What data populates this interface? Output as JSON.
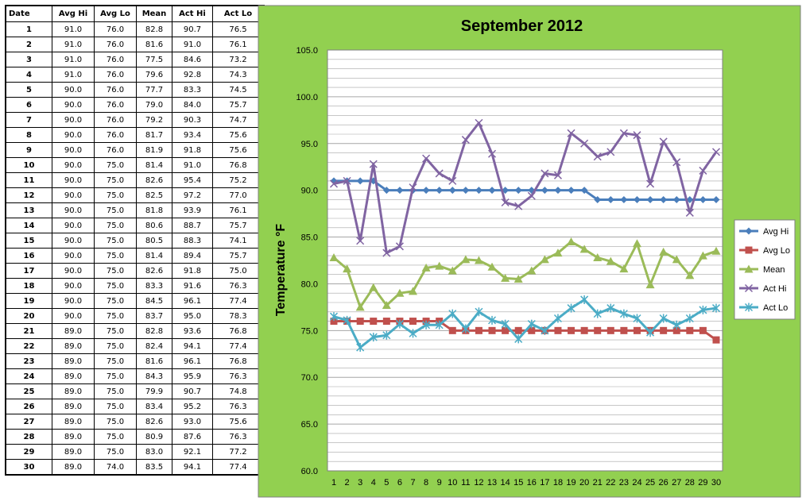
{
  "table": {
    "headers": [
      "Date",
      "Avg Hi",
      "Avg Lo",
      "Mean",
      "Act Hi",
      "Act Lo"
    ],
    "rows": [
      [
        "1",
        "91.0",
        "76.0",
        "82.8",
        "90.7",
        "76.5"
      ],
      [
        "2",
        "91.0",
        "76.0",
        "81.6",
        "91.0",
        "76.1"
      ],
      [
        "3",
        "91.0",
        "76.0",
        "77.5",
        "84.6",
        "73.2"
      ],
      [
        "4",
        "91.0",
        "76.0",
        "79.6",
        "92.8",
        "74.3"
      ],
      [
        "5",
        "90.0",
        "76.0",
        "77.7",
        "83.3",
        "74.5"
      ],
      [
        "6",
        "90.0",
        "76.0",
        "79.0",
        "84.0",
        "75.7"
      ],
      [
        "7",
        "90.0",
        "76.0",
        "79.2",
        "90.3",
        "74.7"
      ],
      [
        "8",
        "90.0",
        "76.0",
        "81.7",
        "93.4",
        "75.6"
      ],
      [
        "9",
        "90.0",
        "76.0",
        "81.9",
        "91.8",
        "75.6"
      ],
      [
        "10",
        "90.0",
        "75.0",
        "81.4",
        "91.0",
        "76.8"
      ],
      [
        "11",
        "90.0",
        "75.0",
        "82.6",
        "95.4",
        "75.2"
      ],
      [
        "12",
        "90.0",
        "75.0",
        "82.5",
        "97.2",
        "77.0"
      ],
      [
        "13",
        "90.0",
        "75.0",
        "81.8",
        "93.9",
        "76.1"
      ],
      [
        "14",
        "90.0",
        "75.0",
        "80.6",
        "88.7",
        "75.7"
      ],
      [
        "15",
        "90.0",
        "75.0",
        "80.5",
        "88.3",
        "74.1"
      ],
      [
        "16",
        "90.0",
        "75.0",
        "81.4",
        "89.4",
        "75.7"
      ],
      [
        "17",
        "90.0",
        "75.0",
        "82.6",
        "91.8",
        "75.0"
      ],
      [
        "18",
        "90.0",
        "75.0",
        "83.3",
        "91.6",
        "76.3"
      ],
      [
        "19",
        "90.0",
        "75.0",
        "84.5",
        "96.1",
        "77.4"
      ],
      [
        "20",
        "90.0",
        "75.0",
        "83.7",
        "95.0",
        "78.3"
      ],
      [
        "21",
        "89.0",
        "75.0",
        "82.8",
        "93.6",
        "76.8"
      ],
      [
        "22",
        "89.0",
        "75.0",
        "82.4",
        "94.1",
        "77.4"
      ],
      [
        "23",
        "89.0",
        "75.0",
        "81.6",
        "96.1",
        "76.8"
      ],
      [
        "24",
        "89.0",
        "75.0",
        "84.3",
        "95.9",
        "76.3"
      ],
      [
        "25",
        "89.0",
        "75.0",
        "79.9",
        "90.7",
        "74.8"
      ],
      [
        "26",
        "89.0",
        "75.0",
        "83.4",
        "95.2",
        "76.3"
      ],
      [
        "27",
        "89.0",
        "75.0",
        "82.6",
        "93.0",
        "75.6"
      ],
      [
        "28",
        "89.0",
        "75.0",
        "80.9",
        "87.6",
        "76.3"
      ],
      [
        "29",
        "89.0",
        "75.0",
        "83.0",
        "92.1",
        "77.2"
      ],
      [
        "30",
        "89.0",
        "74.0",
        "83.5",
        "94.1",
        "77.4"
      ]
    ]
  },
  "chart_data": {
    "type": "line",
    "title": "September 2012",
    "xlabel": "",
    "ylabel": "Temperature °F",
    "ylim": [
      60,
      105
    ],
    "yticks": [
      "60.0",
      "65.0",
      "70.0",
      "75.0",
      "80.0",
      "85.0",
      "90.0",
      "95.0",
      "100.0",
      "105.0"
    ],
    "grid": true,
    "legend_position": "right",
    "x": [
      1,
      2,
      3,
      4,
      5,
      6,
      7,
      8,
      9,
      10,
      11,
      12,
      13,
      14,
      15,
      16,
      17,
      18,
      19,
      20,
      21,
      22,
      23,
      24,
      25,
      26,
      27,
      28,
      29,
      30
    ],
    "series": [
      {
        "name": "Avg Hi",
        "color": "#4a7ebb",
        "marker": "diamond",
        "values": [
          91.0,
          91.0,
          91.0,
          91.0,
          90.0,
          90.0,
          90.0,
          90.0,
          90.0,
          90.0,
          90.0,
          90.0,
          90.0,
          90.0,
          90.0,
          90.0,
          90.0,
          90.0,
          90.0,
          90.0,
          89.0,
          89.0,
          89.0,
          89.0,
          89.0,
          89.0,
          89.0,
          89.0,
          89.0,
          89.0
        ]
      },
      {
        "name": "Avg Lo",
        "color": "#c0504d",
        "marker": "square",
        "values": [
          76.0,
          76.0,
          76.0,
          76.0,
          76.0,
          76.0,
          76.0,
          76.0,
          76.0,
          75.0,
          75.0,
          75.0,
          75.0,
          75.0,
          75.0,
          75.0,
          75.0,
          75.0,
          75.0,
          75.0,
          75.0,
          75.0,
          75.0,
          75.0,
          75.0,
          75.0,
          75.0,
          75.0,
          75.0,
          74.0
        ]
      },
      {
        "name": "Mean",
        "color": "#9bbb59",
        "marker": "triangle",
        "values": [
          82.8,
          81.6,
          77.5,
          79.6,
          77.7,
          79.0,
          79.2,
          81.7,
          81.9,
          81.4,
          82.6,
          82.5,
          81.8,
          80.6,
          80.5,
          81.4,
          82.6,
          83.3,
          84.5,
          83.7,
          82.8,
          82.4,
          81.6,
          84.3,
          79.9,
          83.4,
          82.6,
          80.9,
          83.0,
          83.5
        ]
      },
      {
        "name": "Act Hi",
        "color": "#8064a2",
        "marker": "x",
        "values": [
          90.7,
          91.0,
          84.6,
          92.8,
          83.3,
          84.0,
          90.3,
          93.4,
          91.8,
          91.0,
          95.4,
          97.2,
          93.9,
          88.7,
          88.3,
          89.4,
          91.8,
          91.6,
          96.1,
          95.0,
          93.6,
          94.1,
          96.1,
          95.9,
          90.7,
          95.2,
          93.0,
          87.6,
          92.1,
          94.1
        ]
      },
      {
        "name": "Act Lo",
        "color": "#4bacc6",
        "marker": "star",
        "values": [
          76.5,
          76.1,
          73.2,
          74.3,
          74.5,
          75.7,
          74.7,
          75.6,
          75.6,
          76.8,
          75.2,
          77.0,
          76.1,
          75.7,
          74.1,
          75.7,
          75.0,
          76.3,
          77.4,
          78.3,
          76.8,
          77.4,
          76.8,
          76.3,
          74.8,
          76.3,
          75.6,
          76.3,
          77.2,
          77.4
        ]
      }
    ]
  },
  "colors": {
    "chart_background": "#92d050",
    "plot_background": "#ffffff",
    "gridline": "#a6a6a6"
  }
}
